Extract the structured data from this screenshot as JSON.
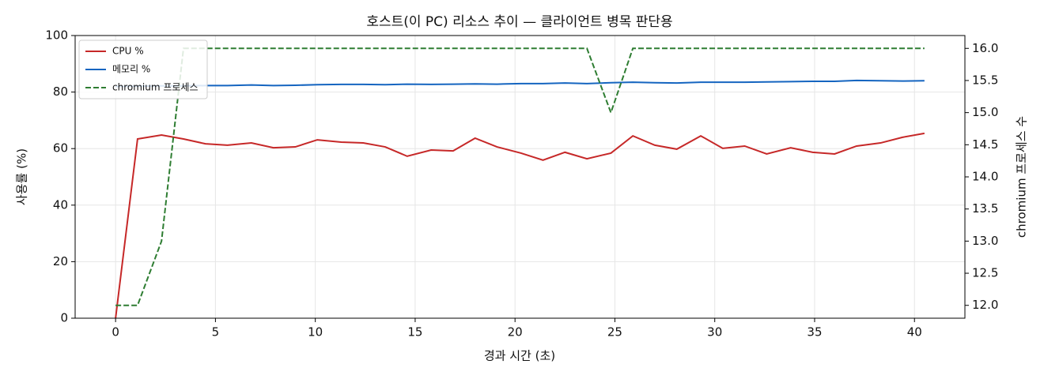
{
  "chart_data": {
    "type": "line",
    "title": "호스트(이 PC) 리소스 추이 — 클라이언트 병목 판단용",
    "x_label": "경과 시간 (초)",
    "y_label": "사용률 (%)",
    "y2_label": "chromium 프로세스 수",
    "x": [
      0,
      1.1,
      2.3,
      3.4,
      4.5,
      5.6,
      6.8,
      7.9,
      9,
      10.1,
      11.3,
      12.4,
      13.5,
      14.6,
      15.8,
      16.9,
      18,
      19.1,
      20.3,
      21.4,
      22.5,
      23.6,
      24.8,
      25.9,
      27,
      28.1,
      29.3,
      30.4,
      31.5,
      32.6,
      33.8,
      34.9,
      36,
      37.1,
      38.3,
      39.4,
      40.5
    ],
    "series": [
      {
        "name": "CPU %",
        "color": "#c62828",
        "linestyle": "solid",
        "axis": "y",
        "values": [
          0,
          63.4,
          64.8,
          63.4,
          61.7,
          61.2,
          62.0,
          60.3,
          60.6,
          63.1,
          62.3,
          62.0,
          60.6,
          57.3,
          59.5,
          59.2,
          63.7,
          60.6,
          58.4,
          55.9,
          58.7,
          56.4,
          58.4,
          64.5,
          61.2,
          59.8,
          64.5,
          60.1,
          60.9,
          58.1,
          60.3,
          58.7,
          58.1,
          60.9,
          62.0,
          64.0,
          65.4
        ]
      },
      {
        "name": "메모리 %",
        "color": "#1565c0",
        "linestyle": "solid",
        "axis": "y",
        "values": [
          82.0,
          82.1,
          82.2,
          82.2,
          82.3,
          82.3,
          82.5,
          82.3,
          82.4,
          82.6,
          82.7,
          82.7,
          82.6,
          82.8,
          82.7,
          82.8,
          82.9,
          82.8,
          83.0,
          83.0,
          83.2,
          83.0,
          83.3,
          83.5,
          83.3,
          83.2,
          83.5,
          83.5,
          83.5,
          83.6,
          83.7,
          83.8,
          83.8,
          84.1,
          84.0,
          83.9,
          84.0
        ]
      },
      {
        "name": "chromium 프로세스",
        "color": "#2e7d32",
        "linestyle": "dashed",
        "axis": "y2",
        "values": [
          12,
          12,
          13,
          16,
          16,
          16,
          16,
          16,
          16,
          16,
          16,
          16,
          16,
          16,
          16,
          16,
          16,
          16,
          16,
          16,
          16,
          16,
          15,
          16,
          16,
          16,
          16,
          16,
          16,
          16,
          16,
          16,
          16,
          16,
          16,
          16,
          16
        ]
      }
    ],
    "xlim": [
      -2.025,
      42.525
    ],
    "xticks": [
      0,
      5,
      10,
      15,
      20,
      25,
      30,
      35,
      40
    ],
    "ylim": [
      0,
      100
    ],
    "yticks": [
      0,
      20,
      40,
      60,
      80,
      100
    ],
    "y2lim": [
      11.8,
      16.2
    ],
    "y2ticks": [
      {
        "value": 12,
        "label": "12.0"
      },
      {
        "value": 12.5,
        "label": "12.5"
      },
      {
        "value": 13,
        "label": "13.0"
      },
      {
        "value": 13.5,
        "label": "13.5"
      },
      {
        "value": 14,
        "label": "14.0"
      },
      {
        "value": 14.5,
        "label": "14.5"
      },
      {
        "value": 15,
        "label": "15.0"
      },
      {
        "value": 15.5,
        "label": "15.5"
      },
      {
        "value": 16,
        "label": "16.0"
      }
    ],
    "grid": true,
    "legend": "upper-left"
  }
}
